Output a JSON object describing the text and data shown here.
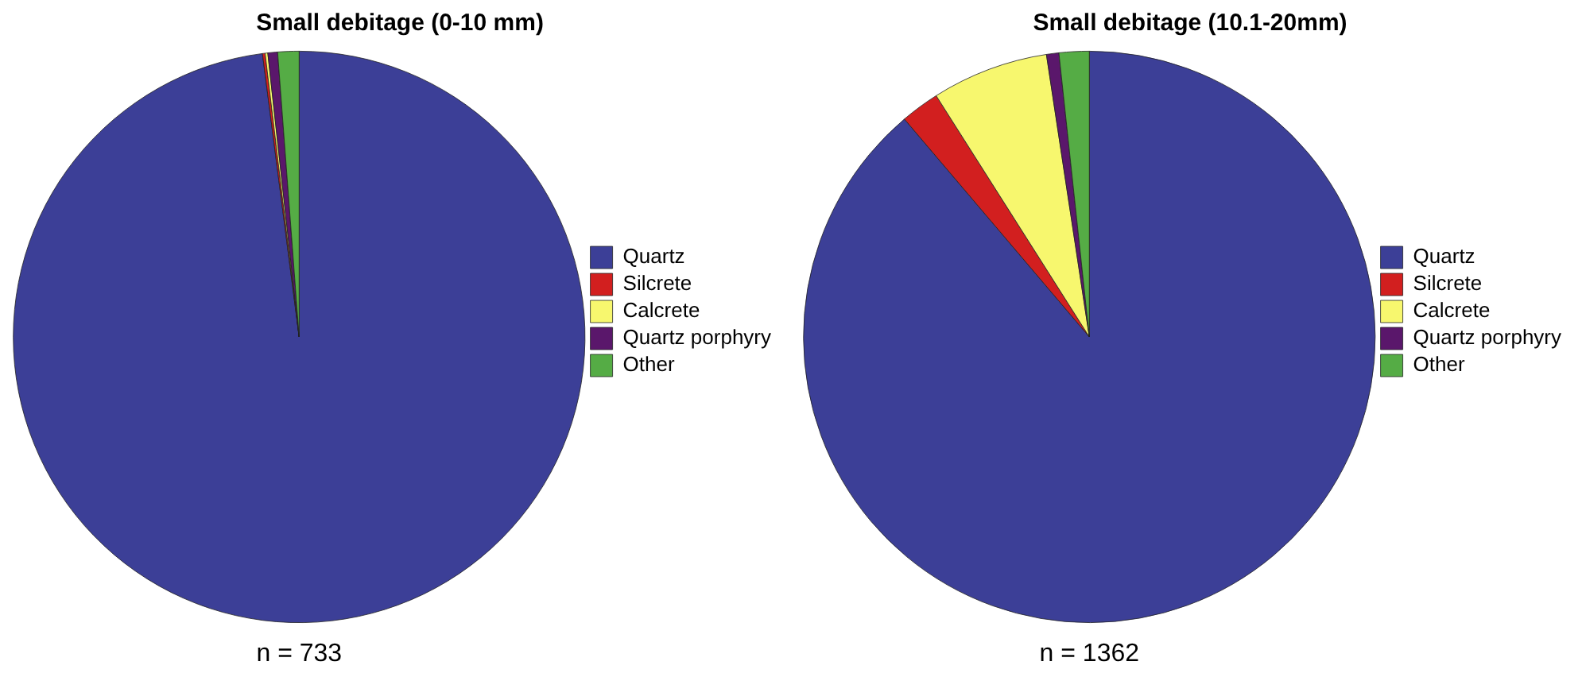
{
  "chart_data": [
    {
      "type": "pie",
      "title": "Small debitage (0-10 mm)",
      "categories": [
        "Quartz",
        "Silcrete",
        "Calcrete",
        "Quartz porphyry",
        "Other"
      ],
      "values": [
        97.95,
        0.15,
        0.15,
        0.55,
        1.2
      ],
      "colors": [
        "#3c3f97",
        "#d21f1f",
        "#f7f76e",
        "#5a176b",
        "#55ac45"
      ],
      "legend": "right",
      "annotations": [
        "n = 733"
      ]
    },
    {
      "type": "pie",
      "title": "Small debitage (10.1-20mm)",
      "categories": [
        "Quartz",
        "Silcrete",
        "Calcrete",
        "Quartz porphyry",
        "Other"
      ],
      "values": [
        88.8,
        2.2,
        6.6,
        0.7,
        1.7
      ],
      "colors": [
        "#3c3f97",
        "#d21f1f",
        "#f7f76e",
        "#5a176b",
        "#55ac45"
      ],
      "legend": "right",
      "annotations": [
        "n = 1362"
      ]
    }
  ]
}
